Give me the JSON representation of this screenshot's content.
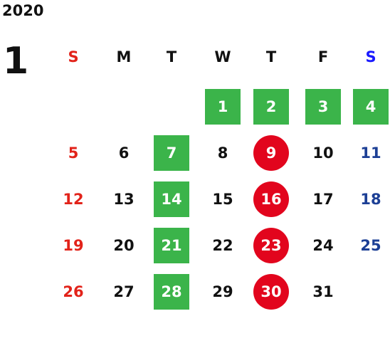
{
  "year": "2020",
  "month": "1",
  "weekdays": [
    {
      "label": "S",
      "color": "#e2231a"
    },
    {
      "label": "M",
      "color": "#111111"
    },
    {
      "label": "T",
      "color": "#111111"
    },
    {
      "label": "W",
      "color": "#111111"
    },
    {
      "label": "T",
      "color": "#111111"
    },
    {
      "label": "F",
      "color": "#111111"
    },
    {
      "label": "S",
      "color": "#1a1aff"
    }
  ],
  "weeks": [
    [
      {
        "d": ""
      },
      {
        "d": ""
      },
      {
        "d": ""
      },
      {
        "d": "1",
        "mark": "green"
      },
      {
        "d": "2",
        "mark": "green"
      },
      {
        "d": "3",
        "mark": "green"
      },
      {
        "d": "4",
        "mark": "green"
      }
    ],
    [
      {
        "d": "5"
      },
      {
        "d": "6"
      },
      {
        "d": "7",
        "mark": "green"
      },
      {
        "d": "8"
      },
      {
        "d": "9",
        "mark": "red"
      },
      {
        "d": "10"
      },
      {
        "d": "11"
      }
    ],
    [
      {
        "d": "12"
      },
      {
        "d": "13"
      },
      {
        "d": "14",
        "mark": "green"
      },
      {
        "d": "15"
      },
      {
        "d": "16",
        "mark": "red"
      },
      {
        "d": "17"
      },
      {
        "d": "18"
      }
    ],
    [
      {
        "d": "19"
      },
      {
        "d": "20"
      },
      {
        "d": "21",
        "mark": "green"
      },
      {
        "d": "22"
      },
      {
        "d": "23",
        "mark": "red"
      },
      {
        "d": "24"
      },
      {
        "d": "25"
      }
    ],
    [
      {
        "d": "26"
      },
      {
        "d": "27"
      },
      {
        "d": "28",
        "mark": "green"
      },
      {
        "d": "29"
      },
      {
        "d": "30",
        "mark": "red"
      },
      {
        "d": "31"
      },
      {
        "d": ""
      }
    ]
  ],
  "colors": {
    "green": "#3bb44a",
    "red": "#e2051d",
    "sunday": "#e2231a",
    "saturday": "#1c3f95"
  }
}
